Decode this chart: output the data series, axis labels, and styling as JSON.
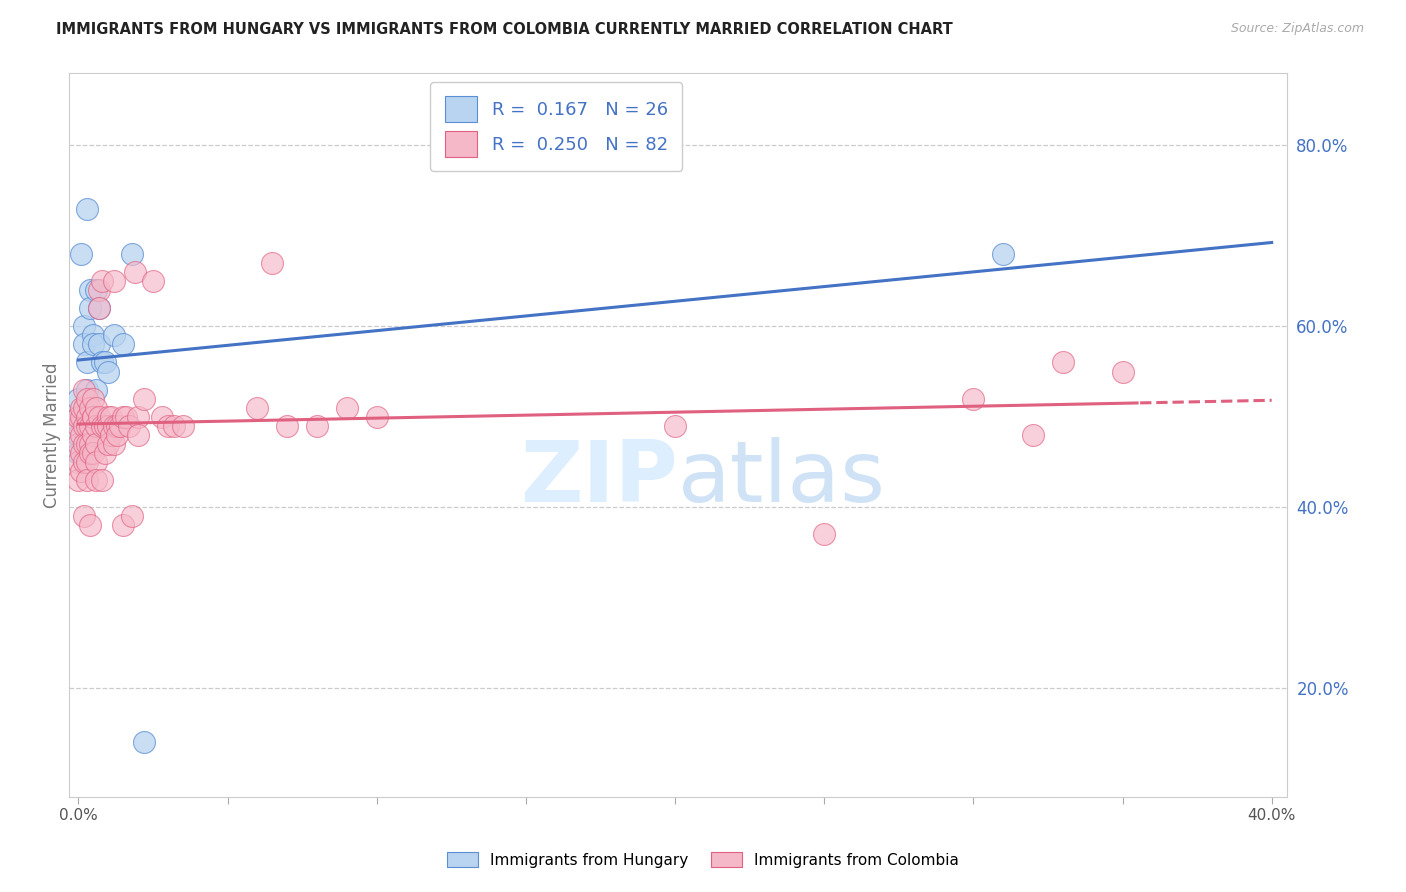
{
  "title": "IMMIGRANTS FROM HUNGARY VS IMMIGRANTS FROM COLOMBIA CURRENTLY MARRIED CORRELATION CHART",
  "source": "Source: ZipAtlas.com",
  "ylabel": "Currently Married",
  "legend_hungary": {
    "R": 0.167,
    "N": 26,
    "color": "#b8d4f0",
    "edge": "#5b8fd4"
  },
  "legend_colombia": {
    "R": 0.25,
    "N": 82,
    "color": "#f5b8c8",
    "edge": "#e06080"
  },
  "hungary_scatter": [
    [
      0.0,
      0.5
    ],
    [
      0.0,
      0.48
    ],
    [
      0.0,
      0.46
    ],
    [
      0.0,
      0.52
    ],
    [
      0.001,
      0.68
    ],
    [
      0.002,
      0.6
    ],
    [
      0.002,
      0.58
    ],
    [
      0.003,
      0.56
    ],
    [
      0.003,
      0.53
    ],
    [
      0.003,
      0.73
    ],
    [
      0.004,
      0.64
    ],
    [
      0.004,
      0.62
    ],
    [
      0.005,
      0.59
    ],
    [
      0.005,
      0.58
    ],
    [
      0.006,
      0.64
    ],
    [
      0.006,
      0.53
    ],
    [
      0.007,
      0.58
    ],
    [
      0.007,
      0.62
    ],
    [
      0.008,
      0.56
    ],
    [
      0.009,
      0.56
    ],
    [
      0.01,
      0.55
    ],
    [
      0.012,
      0.59
    ],
    [
      0.015,
      0.58
    ],
    [
      0.018,
      0.68
    ],
    [
      0.022,
      0.14
    ],
    [
      0.31,
      0.68
    ]
  ],
  "colombia_scatter": [
    [
      0.0,
      0.49
    ],
    [
      0.0,
      0.47
    ],
    [
      0.0,
      0.45
    ],
    [
      0.0,
      0.43
    ],
    [
      0.0,
      0.5
    ],
    [
      0.001,
      0.5
    ],
    [
      0.001,
      0.48
    ],
    [
      0.001,
      0.51
    ],
    [
      0.001,
      0.46
    ],
    [
      0.001,
      0.44
    ],
    [
      0.002,
      0.49
    ],
    [
      0.002,
      0.47
    ],
    [
      0.002,
      0.45
    ],
    [
      0.002,
      0.51
    ],
    [
      0.002,
      0.53
    ],
    [
      0.002,
      0.39
    ],
    [
      0.003,
      0.52
    ],
    [
      0.003,
      0.5
    ],
    [
      0.003,
      0.49
    ],
    [
      0.003,
      0.47
    ],
    [
      0.003,
      0.45
    ],
    [
      0.003,
      0.43
    ],
    [
      0.004,
      0.51
    ],
    [
      0.004,
      0.49
    ],
    [
      0.004,
      0.47
    ],
    [
      0.004,
      0.46
    ],
    [
      0.004,
      0.38
    ],
    [
      0.005,
      0.52
    ],
    [
      0.005,
      0.5
    ],
    [
      0.005,
      0.48
    ],
    [
      0.005,
      0.46
    ],
    [
      0.005,
      0.5
    ],
    [
      0.006,
      0.51
    ],
    [
      0.006,
      0.49
    ],
    [
      0.006,
      0.47
    ],
    [
      0.006,
      0.45
    ],
    [
      0.006,
      0.43
    ],
    [
      0.007,
      0.64
    ],
    [
      0.007,
      0.62
    ],
    [
      0.007,
      0.5
    ],
    [
      0.008,
      0.65
    ],
    [
      0.008,
      0.49
    ],
    [
      0.008,
      0.43
    ],
    [
      0.009,
      0.49
    ],
    [
      0.009,
      0.46
    ],
    [
      0.01,
      0.5
    ],
    [
      0.01,
      0.49
    ],
    [
      0.01,
      0.47
    ],
    [
      0.011,
      0.5
    ],
    [
      0.011,
      0.48
    ],
    [
      0.012,
      0.65
    ],
    [
      0.012,
      0.49
    ],
    [
      0.012,
      0.47
    ],
    [
      0.013,
      0.49
    ],
    [
      0.013,
      0.48
    ],
    [
      0.014,
      0.49
    ],
    [
      0.015,
      0.5
    ],
    [
      0.015,
      0.38
    ],
    [
      0.016,
      0.5
    ],
    [
      0.017,
      0.49
    ],
    [
      0.018,
      0.39
    ],
    [
      0.019,
      0.66
    ],
    [
      0.02,
      0.5
    ],
    [
      0.02,
      0.48
    ],
    [
      0.022,
      0.52
    ],
    [
      0.025,
      0.65
    ],
    [
      0.028,
      0.5
    ],
    [
      0.03,
      0.49
    ],
    [
      0.032,
      0.49
    ],
    [
      0.035,
      0.49
    ],
    [
      0.06,
      0.51
    ],
    [
      0.065,
      0.67
    ],
    [
      0.07,
      0.49
    ],
    [
      0.08,
      0.49
    ],
    [
      0.09,
      0.51
    ],
    [
      0.1,
      0.5
    ],
    [
      0.2,
      0.49
    ],
    [
      0.25,
      0.37
    ],
    [
      0.3,
      0.52
    ],
    [
      0.32,
      0.48
    ],
    [
      0.33,
      0.56
    ],
    [
      0.35,
      0.55
    ]
  ],
  "hungary_line_color": "#4472c4",
  "colombia_line_color": "#e06080",
  "background_color": "#ffffff",
  "grid_color": "#cccccc",
  "title_color": "#222222",
  "right_label_color": "#4472c4",
  "watermark_color": "#ddeeff",
  "xlim": [
    0.0,
    0.4
  ],
  "ylim": [
    0.08,
    0.88
  ],
  "right_yticks": [
    0.2,
    0.4,
    0.6,
    0.8
  ],
  "right_ytick_labels": [
    "20.0%",
    "40.0%",
    "60.0%",
    "80.0%"
  ]
}
